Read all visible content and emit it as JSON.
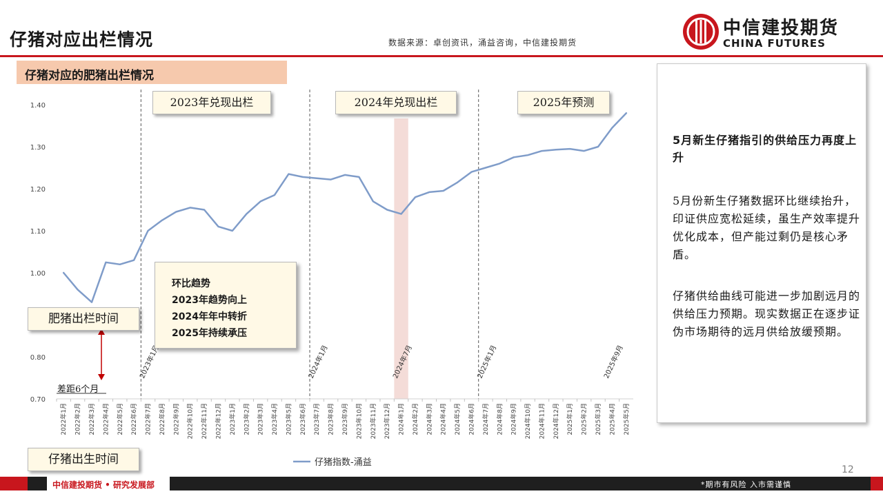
{
  "header": {
    "title": "仔猪对应出栏情况",
    "source": "数据来源：卓创资讯，涌益咨询，中信建投期货",
    "logo_cn": "中信建投期货",
    "logo_en": "CHINA FUTURES"
  },
  "subtitle": "仔猪对应的肥猪出栏情况",
  "annotations": {
    "period_2023": "2023年兑现出栏",
    "period_2024": "2024年兑现出栏",
    "period_2025": "2025年预测",
    "trend_lines": [
      "环比趋势",
      "2023年趋势向上",
      "2024年年中转折",
      "2025年持续承压"
    ],
    "fat_pig_time": "肥猪出栏时间",
    "piglet_birth_time": "仔猪出生时间",
    "gap": "差距6个月",
    "vlabels": [
      "2023年1月",
      "2024年1月",
      "2024年7月",
      "2025年1月",
      "2025年9月"
    ]
  },
  "chart_data": {
    "type": "line",
    "title": "",
    "xlabel": "",
    "ylabel": "",
    "ylim": [
      0.7,
      1.4
    ],
    "yticks": [
      "0.70",
      "0.80",
      "0.90",
      "1.00",
      "1.10",
      "1.20",
      "1.30",
      "1.40"
    ],
    "grid": false,
    "legend": "bottom-center",
    "categories": [
      "2022年1月",
      "2022年2月",
      "2022年3月",
      "2022年4月",
      "2022年5月",
      "2022年6月",
      "2022年7月",
      "2022年8月",
      "2022年9月",
      "2022年10月",
      "2022年11月",
      "2022年12月",
      "2023年1月",
      "2023年2月",
      "2023年3月",
      "2023年4月",
      "2023年5月",
      "2023年6月",
      "2023年7月",
      "2023年8月",
      "2023年9月",
      "2023年10月",
      "2023年11月",
      "2023年12月",
      "2024年1月",
      "2024年2月",
      "2024年3月",
      "2024年4月",
      "2024年5月",
      "2024年6月",
      "2024年7月",
      "2024年8月",
      "2024年9月",
      "2024年10月",
      "2024年11月",
      "2024年12月",
      "2025年1月",
      "2025年2月",
      "2025年3月",
      "2025年4月",
      "2025年5月"
    ],
    "series": [
      {
        "name": "仔猪指数-涌益",
        "color": "#7f9cc9",
        "values": [
          1.0,
          0.96,
          0.93,
          1.025,
          1.02,
          1.03,
          1.1,
          1.125,
          1.145,
          1.155,
          1.15,
          1.11,
          1.1,
          1.14,
          1.17,
          1.185,
          1.235,
          1.228,
          1.225,
          1.222,
          1.233,
          1.228,
          1.17,
          1.15,
          1.14,
          1.18,
          1.192,
          1.195,
          1.215,
          1.24,
          1.25,
          1.26,
          1.275,
          1.28,
          1.29,
          1.293,
          1.295,
          1.29,
          1.3,
          1.345,
          1.38
        ]
      }
    ],
    "vertical_markers": [
      "2022年6月",
      "2023年6月",
      "2024年6月"
    ],
    "highlight_category": "2023年12月"
  },
  "side_panel": {
    "heading": "5月新生仔猪指引的供给压力再度上升",
    "para1": "5月份新生仔猪数据环比继续抬升，印证供应宽松延续，虽生产效率提升优化成本，但产能过剩仍是核心矛盾。",
    "para2": "仔猪供给曲线可能进一步加剧远月的供给压力预期。现实数据正在逐步证伪市场期待的远月供给放缓预期。"
  },
  "footer": {
    "left": "中信建投期货 • 研究发展部",
    "right": "*期市有风险 入市需谨慎",
    "page": "12"
  },
  "colors": {
    "brand_red": "#c8161d",
    "subtitle_bg": "#f6c9ad",
    "highlight": "#f4dcd8"
  }
}
